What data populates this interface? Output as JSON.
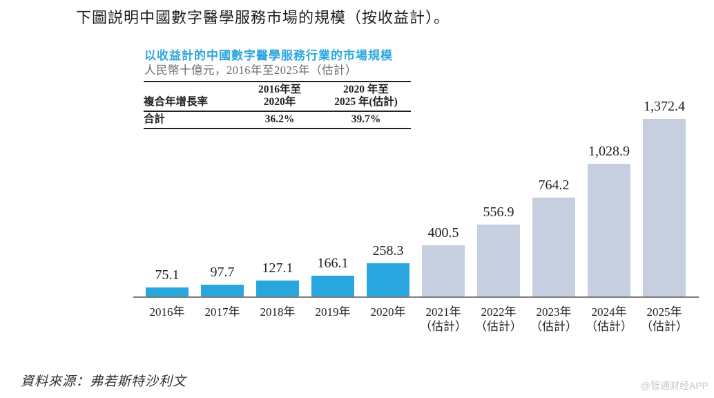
{
  "page": {
    "intro_text": "下圖説明中國數字醫學服務市場的規模（按收益計）。",
    "source_text": "資料來源：弗若斯特沙利文",
    "watermark": "@智通财经APP"
  },
  "chart_header": {
    "title": "以收益計的中國數字醫學服務行業的市場規模",
    "subtitle": "人民幣十億元，2016年至2025年（估計）",
    "title_color": "#2da7e0"
  },
  "cagr_table": {
    "row_header": "複合年增長率",
    "col_headers": [
      "2016年至\n2020年",
      "2020 年至\n2025 年(估計)"
    ],
    "rows": [
      {
        "label": "合計",
        "values": [
          "36.2%",
          "39.7%"
        ]
      }
    ]
  },
  "chart_data": {
    "type": "bar",
    "title": "以收益計的中國數字醫學服務行業的市場規模",
    "unit_label": "人民幣十億元",
    "categories": [
      "2016年",
      "2017年",
      "2018年",
      "2019年",
      "2020年",
      "2021年",
      "2022年",
      "2023年",
      "2024年",
      "2025年"
    ],
    "estimate_suffix": "（估計）",
    "estimated_from_index": 5,
    "values": [
      75.1,
      97.7,
      127.1,
      166.1,
      258.3,
      400.5,
      556.9,
      764.2,
      1028.9,
      1372.4
    ],
    "value_labels": [
      "75.1",
      "97.7",
      "127.1",
      "166.1",
      "258.3",
      "400.5",
      "556.9",
      "764.2",
      "1,028.9",
      "1,372.4"
    ],
    "ylim": [
      0,
      1450
    ],
    "grid": false,
    "legend": "none",
    "colors": {
      "actual": "#29a6dd",
      "estimated": "#c6cfe0"
    }
  }
}
